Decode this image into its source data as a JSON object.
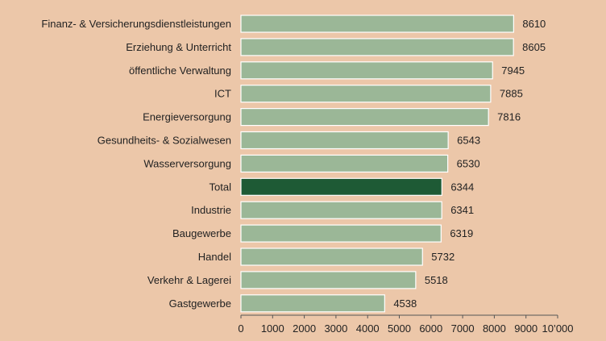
{
  "chart_data": {
    "type": "bar",
    "orientation": "horizontal",
    "categories": [
      "Finanz- & Versicherungsdienstleistungen",
      "Erziehung & Unterricht",
      "öffentliche Verwaltung",
      "ICT",
      "Energieversorgung",
      "Gesundheits- & Sozialwesen",
      "Wasserversorgung",
      "Total",
      "Industrie",
      "Baugewerbe",
      "Handel",
      "Verkehr & Lagerei",
      "Gastgewerbe"
    ],
    "values": [
      8610,
      8605,
      7945,
      7885,
      7816,
      6543,
      6530,
      6344,
      6341,
      6319,
      5732,
      5518,
      4538
    ],
    "value_labels": [
      "8610",
      "8605",
      "7945",
      "7885",
      "7816",
      "6543",
      "6530",
      "6344",
      "6341",
      "6319",
      "5732",
      "5518",
      "4538"
    ],
    "highlight_category": "Total",
    "xlim": [
      0,
      10000
    ],
    "xticks": [
      0,
      1000,
      2000,
      3000,
      4000,
      5000,
      6000,
      7000,
      8000,
      9000,
      10000
    ],
    "xtick_labels": [
      "0",
      "1000",
      "2000",
      "3000",
      "4000",
      "5000",
      "6000",
      "7000",
      "8000",
      "9000",
      "10’000"
    ],
    "title": "",
    "xlabel": "",
    "ylabel": "",
    "grid": false,
    "legend": false,
    "colors": {
      "background": "#ecc7a9",
      "bar": "#9bb797",
      "highlight": "#1e5a35",
      "bar_border": "#ffffff",
      "axis": "#555555",
      "text": "#222222"
    }
  }
}
